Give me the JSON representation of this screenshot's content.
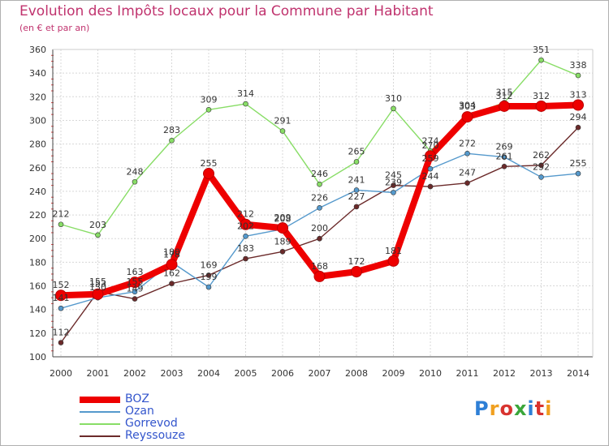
{
  "title": "Evolution des Impôts locaux pour la Commune par Habitant",
  "subtitle": "(en € et par an)",
  "logo": {
    "text": "Proxiti",
    "letter_colors": [
      "#2e7fd6",
      "#f0a020",
      "#d8332f",
      "#3aa63a",
      "#2e7fd6",
      "#d8332f",
      "#f0a020"
    ]
  },
  "chart_data": {
    "type": "line",
    "x": [
      "2000",
      "2001",
      "2002",
      "2003",
      "2004",
      "2005",
      "2006",
      "2007",
      "2008",
      "2009",
      "2010",
      "2011",
      "2012",
      "2013",
      "2014"
    ],
    "ylim": [
      100,
      360
    ],
    "yticks": [
      100,
      120,
      140,
      160,
      180,
      200,
      220,
      240,
      260,
      280,
      300,
      320,
      340,
      360
    ],
    "grid": true,
    "legend_position": "bottom-left",
    "series": [
      {
        "name": "BOZ",
        "color": "#ee0000",
        "values": [
          152,
          153,
          163,
          178,
          255,
          212,
          209,
          168,
          172,
          181,
          270,
          303,
          312,
          312,
          313
        ]
      },
      {
        "name": "Ozan",
        "color": "#5599cc",
        "values": [
          141,
          150,
          155,
          180,
          159,
          202,
          208,
          226,
          241,
          239,
          259,
          272,
          269,
          252,
          255
        ]
      },
      {
        "name": "Gorrevod",
        "color": "#88dd66",
        "values": [
          212,
          203,
          248,
          283,
          309,
          314,
          291,
          246,
          265,
          310,
          274,
          304,
          315,
          351,
          338
        ]
      },
      {
        "name": "Reyssouze",
        "color": "#6b2a2a",
        "values": [
          112,
          155,
          149,
          162,
          169,
          183,
          189,
          200,
          227,
          245,
          244,
          247,
          261,
          262,
          294
        ]
      }
    ]
  }
}
